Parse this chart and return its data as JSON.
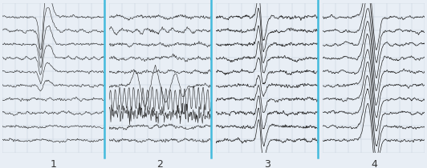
{
  "n_channels": 10,
  "n_sections": 4,
  "section_labels": [
    "1",
    "2",
    "3",
    "4"
  ],
  "bg_color": "#e8eef5",
  "grid_color": "#c0ccd8",
  "line_color": "#222222",
  "divider_color": "#44bbdd",
  "label_fontsize": 9
}
